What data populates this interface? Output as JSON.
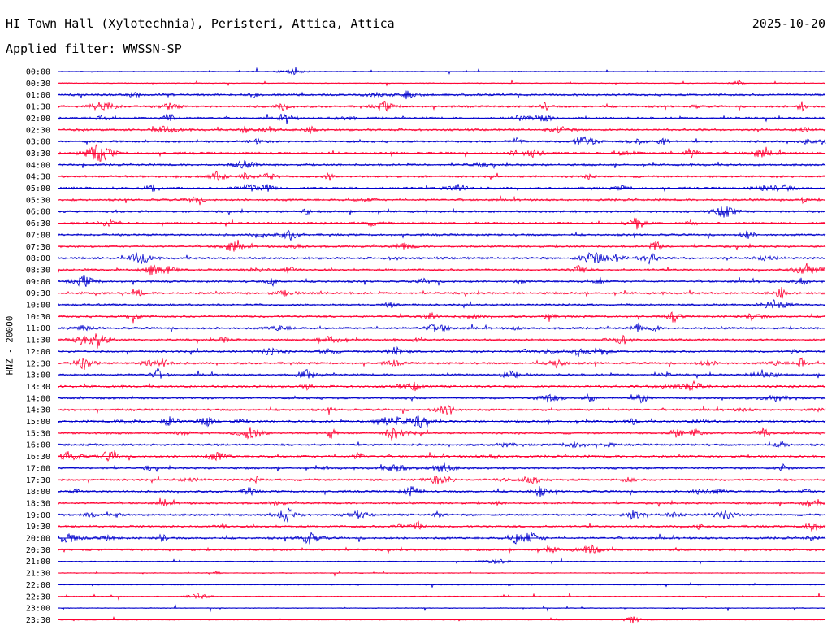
{
  "header": {
    "station": "HI Town Hall (Xylotechnia), Peristeri, Attica, Attica",
    "date": "2025-10-20",
    "filter": "Applied filter: WWSSN-SP"
  },
  "chart_data": {
    "type": "line",
    "ylabel": "HNZ - 20000",
    "rows": [
      "00:00",
      "00:30",
      "01:00",
      "01:30",
      "02:00",
      "02:30",
      "03:00",
      "03:30",
      "04:00",
      "04:30",
      "05:00",
      "05:30",
      "06:00",
      "06:30",
      "07:00",
      "07:30",
      "08:00",
      "08:30",
      "09:00",
      "09:30",
      "10:00",
      "10:30",
      "11:00",
      "11:30",
      "12:00",
      "12:30",
      "13:00",
      "13:30",
      "14:00",
      "14:30",
      "15:00",
      "15:30",
      "16:00",
      "16:30",
      "17:00",
      "17:30",
      "18:00",
      "18:30",
      "19:00",
      "19:30",
      "20:00",
      "20:30",
      "21:00",
      "21:30",
      "22:00",
      "22:30",
      "23:00",
      "23:30"
    ],
    "colors": [
      "#0000cc",
      "#ff0033"
    ],
    "grid": false
  }
}
